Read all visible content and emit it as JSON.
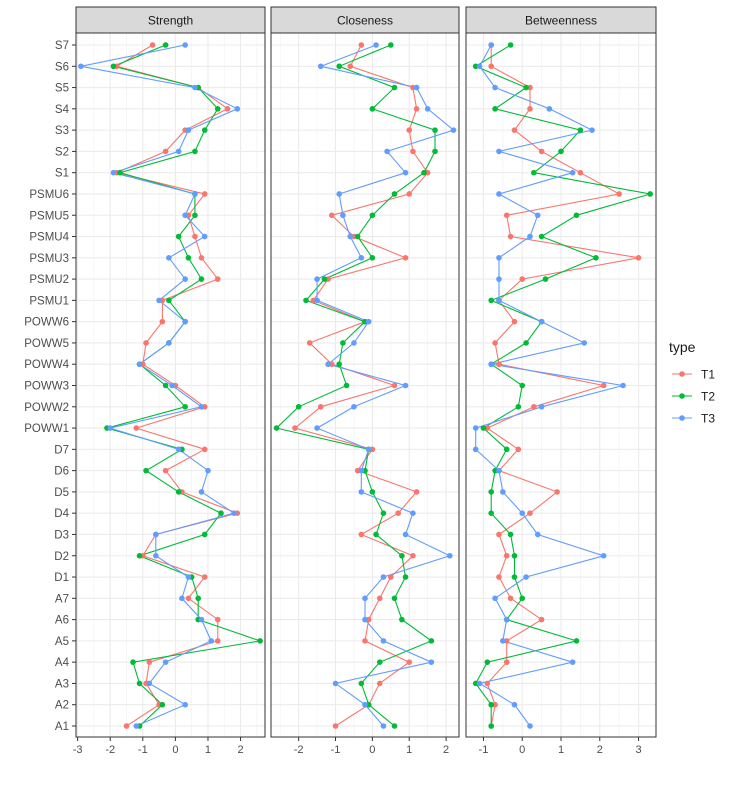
{
  "chart_data": {
    "type": "line",
    "orientation": "horizontal-values",
    "facets": [
      "Strength",
      "Closeness",
      "Betweenness"
    ],
    "categories": [
      "S7",
      "S6",
      "S5",
      "S4",
      "S3",
      "S2",
      "S1",
      "PSMU6",
      "PSMU5",
      "PSMU4",
      "PSMU3",
      "PSMU2",
      "PSMU1",
      "POWW6",
      "POWW5",
      "POWW4",
      "POWW3",
      "POWW2",
      "POWW1",
      "D7",
      "D6",
      "D5",
      "D4",
      "D3",
      "D2",
      "D1",
      "A7",
      "A6",
      "A5",
      "A4",
      "A3",
      "A2",
      "A1"
    ],
    "x_ranges": {
      "Strength": [
        -3.05,
        2.75
      ],
      "Closeness": [
        -2.75,
        2.35
      ],
      "Betweenness": [
        -1.45,
        3.45
      ]
    },
    "x_ticks": {
      "Strength": [
        -3,
        -2,
        -1,
        0,
        1,
        2
      ],
      "Closeness": [
        -2,
        -1,
        0,
        1,
        2
      ],
      "Betweenness": [
        -1,
        0,
        1,
        2,
        3
      ]
    },
    "legend": {
      "title": "type",
      "position": "right",
      "entries": [
        {
          "name": "T1",
          "color": "#F8766D"
        },
        {
          "name": "T2",
          "color": "#00BA38"
        },
        {
          "name": "T3",
          "color": "#619CFF"
        }
      ]
    },
    "grid": true,
    "series": [
      {
        "name": "T1",
        "color": "#F8766D",
        "values": {
          "Strength": [
            -0.7,
            -1.8,
            0.7,
            1.6,
            0.3,
            -0.3,
            -1.8,
            0.9,
            0.4,
            0.6,
            0.8,
            1.3,
            -0.4,
            -0.4,
            -0.9,
            -1.0,
            0.0,
            0.9,
            -1.2,
            0.9,
            -0.3,
            0.2,
            1.9,
            -0.6,
            -1.0,
            0.9,
            0.4,
            1.3,
            1.3,
            -0.8,
            -0.9,
            -0.5,
            -1.5
          ],
          "Closeness": [
            -0.3,
            -0.6,
            1.1,
            1.2,
            1.0,
            1.1,
            1.5,
            1.0,
            -1.1,
            -0.5,
            0.9,
            -1.2,
            -1.6,
            -0.2,
            -1.7,
            -1.1,
            0.6,
            -1.4,
            -2.1,
            0.0,
            -0.4,
            1.2,
            0.7,
            -0.3,
            1.1,
            0.5,
            0.2,
            -0.1,
            -0.2,
            1.0,
            0.2,
            -0.1,
            -1.0
          ],
          "Betweenness": [
            -0.8,
            -0.8,
            0.2,
            0.2,
            -0.2,
            0.5,
            1.5,
            2.5,
            -0.4,
            -0.3,
            3.0,
            0.0,
            -0.6,
            -0.2,
            -0.7,
            -0.6,
            2.1,
            0.3,
            -0.9,
            -0.1,
            -0.6,
            0.9,
            0.2,
            -0.6,
            -0.4,
            -0.6,
            -0.3,
            0.5,
            -0.4,
            -0.4,
            -0.9,
            -0.7,
            -0.8
          ]
        }
      },
      {
        "name": "T2",
        "color": "#00BA38",
        "values": {
          "Strength": [
            -0.3,
            -1.9,
            0.7,
            1.3,
            0.9,
            0.6,
            -1.7,
            0.6,
            0.6,
            0.1,
            0.4,
            0.8,
            -0.2,
            0.3,
            -0.2,
            -1.1,
            -0.3,
            0.3,
            -2.1,
            0.2,
            -0.9,
            0.1,
            1.4,
            0.9,
            -1.1,
            0.5,
            0.7,
            0.7,
            2.6,
            -1.3,
            -1.1,
            -0.4,
            -1.1
          ],
          "Closeness": [
            0.5,
            -0.9,
            0.6,
            0.0,
            1.7,
            1.7,
            1.4,
            0.6,
            0.0,
            -0.4,
            0.0,
            -1.3,
            -1.8,
            -0.2,
            -0.8,
            -0.9,
            -0.7,
            -2.0,
            -2.6,
            -0.1,
            -0.2,
            0.0,
            0.3,
            0.1,
            0.8,
            0.9,
            0.6,
            0.8,
            1.6,
            0.2,
            -0.3,
            -0.1,
            0.6
          ],
          "Betweenness": [
            -0.3,
            -1.2,
            0.1,
            -0.7,
            1.5,
            1.0,
            0.3,
            3.3,
            1.4,
            0.5,
            1.9,
            0.6,
            -0.8,
            0.5,
            0.1,
            -0.8,
            0.0,
            -0.1,
            -1.0,
            -0.4,
            -0.7,
            -0.8,
            -0.8,
            -0.3,
            -0.2,
            -0.2,
            0.0,
            -0.4,
            1.4,
            -0.9,
            -1.2,
            -0.8,
            -0.8
          ]
        }
      },
      {
        "name": "T3",
        "color": "#619CFF",
        "values": {
          "Strength": [
            0.3,
            -2.9,
            0.6,
            1.9,
            0.4,
            0.1,
            -1.9,
            0.6,
            0.3,
            0.9,
            -0.2,
            0.3,
            -0.5,
            0.3,
            -0.2,
            -1.1,
            -0.1,
            0.8,
            -2.0,
            0.1,
            1.0,
            0.8,
            1.8,
            -0.6,
            -0.6,
            0.4,
            0.2,
            0.8,
            1.1,
            -0.3,
            -0.8,
            0.3,
            -1.2
          ],
          "Closeness": [
            0.1,
            -1.4,
            1.2,
            1.5,
            2.2,
            0.4,
            0.9,
            -0.9,
            -0.8,
            -0.6,
            -0.3,
            -1.5,
            -1.5,
            -0.1,
            -0.5,
            -1.2,
            0.9,
            -0.5,
            -1.5,
            -0.1,
            -0.3,
            -0.3,
            1.1,
            0.9,
            2.1,
            0.3,
            -0.2,
            -0.2,
            0.3,
            1.6,
            -1.0,
            -0.2,
            0.3
          ],
          "Betweenness": [
            -0.8,
            -1.1,
            -0.7,
            0.7,
            1.8,
            -0.6,
            1.3,
            -0.6,
            0.4,
            0.2,
            -0.6,
            -0.6,
            -0.6,
            0.5,
            1.6,
            -0.8,
            2.6,
            0.5,
            -1.2,
            -1.2,
            -0.6,
            -0.5,
            0.0,
            0.4,
            2.1,
            0.1,
            -0.7,
            -0.4,
            -0.5,
            1.3,
            -1.1,
            -0.2,
            0.2
          ]
        }
      }
    ]
  }
}
